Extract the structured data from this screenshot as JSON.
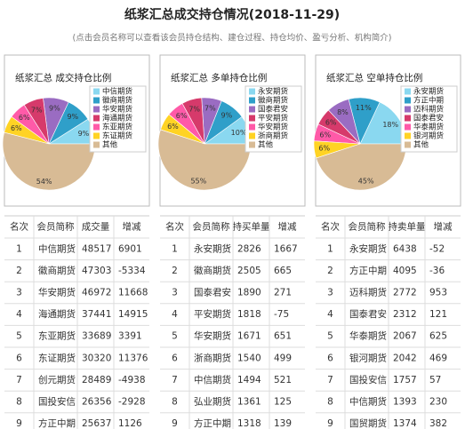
{
  "header": {
    "title": "纸浆汇总成交持仓情况(2018-11-29)",
    "subtitle": "(点击会员名称可以查看该会员持仓结构、建仓过程、持仓均价、盈亏分析、机构简介)"
  },
  "chart_data": [
    {
      "type": "pie",
      "title": "纸浆汇总 成交持仓比例",
      "categories": [
        "中信期货",
        "徽商期货",
        "华安期货",
        "海通期货",
        "东亚期货",
        "东证期货",
        "其他"
      ],
      "values": [
        9,
        9,
        9,
        7,
        6,
        6,
        54
      ],
      "value_labels": [
        "9%",
        "9%",
        "9%",
        "7%",
        "6%",
        "6%",
        "54%"
      ],
      "colors": [
        "#8ad8f0",
        "#2f9fc9",
        "#9a6cc2",
        "#d63a6b",
        "#ff5aa8",
        "#ffd324",
        "#d8bb95"
      ]
    },
    {
      "type": "pie",
      "title": "纸浆汇总 多单持仓比例",
      "categories": [
        "永安期货",
        "徽商期货",
        "国泰君安",
        "平安期货",
        "华安期货",
        "浙商期货",
        "其他"
      ],
      "values": [
        10,
        9,
        7,
        7,
        6,
        6,
        55
      ],
      "value_labels": [
        "10%",
        "9%",
        "7%",
        "7%",
        "6%",
        "6%",
        "55%"
      ],
      "colors": [
        "#8ad8f0",
        "#2f9fc9",
        "#9a6cc2",
        "#d63a6b",
        "#ff5aa8",
        "#ffd324",
        "#d8bb95"
      ]
    },
    {
      "type": "pie",
      "title": "纸浆汇总 空单持仓比例",
      "categories": [
        "永安期货",
        "方正中期",
        "迈科期货",
        "国泰君安",
        "华泰期货",
        "银河期货",
        "其他"
      ],
      "values": [
        18,
        11,
        8,
        6,
        6,
        6,
        45
      ],
      "value_labels": [
        "18%",
        "11%",
        "8%",
        "6%",
        "6%",
        "6%",
        "45%"
      ],
      "colors": [
        "#8ad8f0",
        "#2f9fc9",
        "#9a6cc2",
        "#d63a6b",
        "#ff5aa8",
        "#ffd324",
        "#d8bb95"
      ]
    }
  ],
  "tables": [
    {
      "headers": [
        "名次",
        "会员简称",
        "成交量",
        "增减"
      ],
      "rows": [
        [
          1,
          "中信期货",
          48517,
          6901
        ],
        [
          2,
          "徽商期货",
          47303,
          -5334
        ],
        [
          3,
          "华安期货",
          46972,
          11668
        ],
        [
          4,
          "海通期货",
          37441,
          14915
        ],
        [
          5,
          "东亚期货",
          33689,
          3391
        ],
        [
          6,
          "东证期货",
          30320,
          11376
        ],
        [
          7,
          "创元期货",
          28489,
          -4938
        ],
        [
          8,
          "国投安信",
          26356,
          -2928
        ],
        [
          9,
          "方正中期",
          25637,
          1126
        ]
      ]
    },
    {
      "headers": [
        "名次",
        "会员简称",
        "持买单量",
        "增减"
      ],
      "rows": [
        [
          1,
          "永安期货",
          2826,
          1667
        ],
        [
          2,
          "徽商期货",
          2505,
          665
        ],
        [
          3,
          "国泰君安",
          1890,
          271
        ],
        [
          4,
          "平安期货",
          1818,
          -75
        ],
        [
          5,
          "华安期货",
          1671,
          651
        ],
        [
          6,
          "浙商期货",
          1540,
          499
        ],
        [
          7,
          "中信期货",
          1494,
          521
        ],
        [
          8,
          "弘业期货",
          1361,
          125
        ],
        [
          9,
          "方正中期",
          1318,
          139
        ]
      ]
    },
    {
      "headers": [
        "名次",
        "会员简称",
        "持卖单量",
        "增减"
      ],
      "rows": [
        [
          1,
          "永安期货",
          6438,
          -52
        ],
        [
          2,
          "方正中期",
          4095,
          -36
        ],
        [
          3,
          "迈科期货",
          2772,
          953
        ],
        [
          4,
          "国泰君安",
          2312,
          121
        ],
        [
          5,
          "华泰期货",
          2067,
          625
        ],
        [
          6,
          "银河期货",
          2042,
          469
        ],
        [
          7,
          "国投安信",
          1757,
          57
        ],
        [
          8,
          "中信期货",
          1393,
          230
        ],
        [
          9,
          "国贸期货",
          1374,
          382
        ]
      ]
    }
  ]
}
